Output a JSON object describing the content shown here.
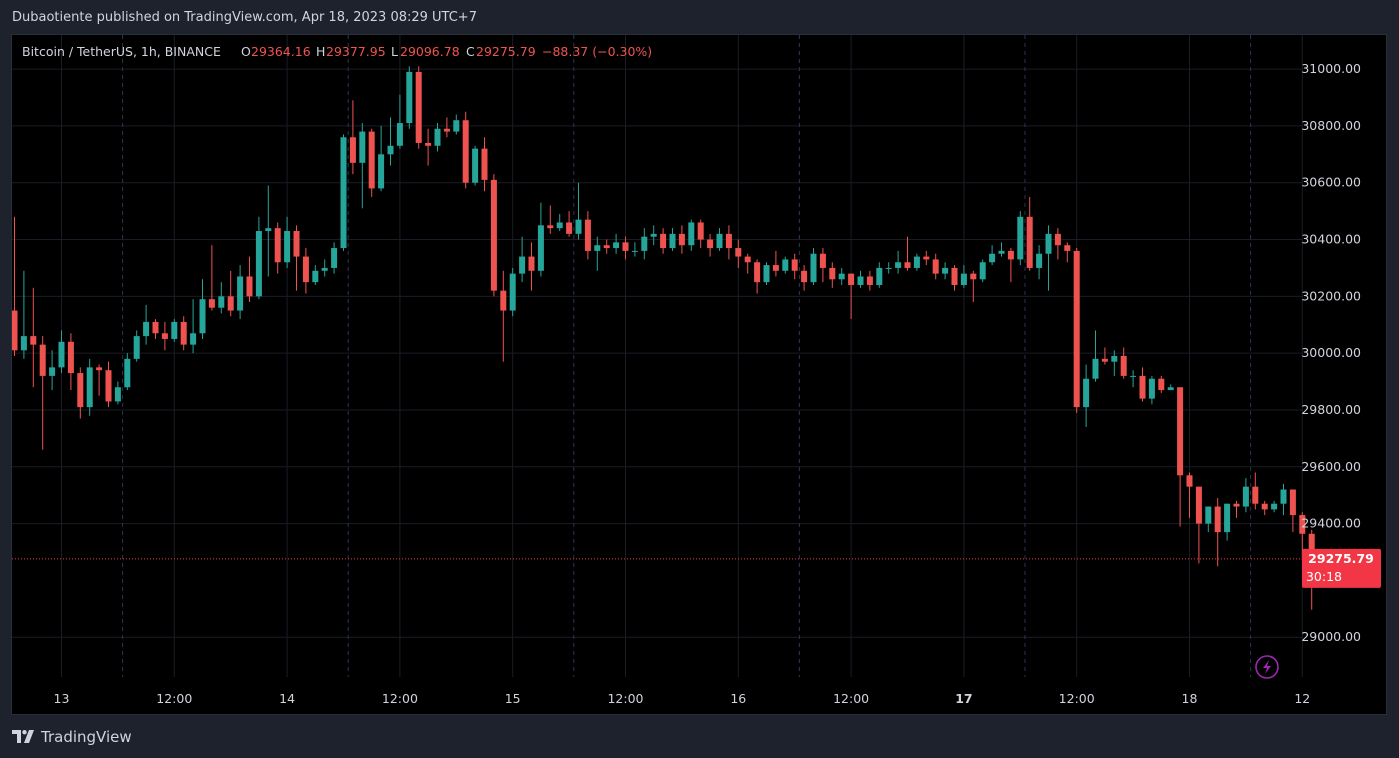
{
  "header": {
    "published_text": "Dubaotiente published on TradingView.com, Apr 18, 2023 08:29 UTC+7"
  },
  "legend": {
    "symbol": "Bitcoin / TetherUS, 1h, BINANCE",
    "open_label": "O",
    "open_value": "29364.16",
    "high_label": "H",
    "high_value": "29377.95",
    "low_label": "L",
    "low_value": "29096.78",
    "close_label": "C",
    "close_value": "29275.79",
    "change": "−88.37 (−0.30%)"
  },
  "price_badge": {
    "price": "29275.79",
    "countdown": "30:18"
  },
  "footer": {
    "brand": "TradingView"
  },
  "colors": {
    "up": "#26a69a",
    "down": "#ef5350",
    "chart_bg": "#000000",
    "page_bg": "#1e222d",
    "grid": "#1a1d26",
    "text": "#d1d4dc",
    "session_line": "#2a3550",
    "badge_bg": "#f23645",
    "price_line": "#f23645",
    "bolt": "#9c27b0"
  },
  "chart_data": {
    "type": "candlestick",
    "symbol": "Bitcoin / TetherUS",
    "interval": "1h",
    "exchange": "BINANCE",
    "ylim": [
      28860,
      31120
    ],
    "y_ticks": [
      31000,
      30800,
      30600,
      30400,
      30200,
      30000,
      29800,
      29600,
      29400,
      29000
    ],
    "y_tick_labels": [
      "31000.00",
      "30800.00",
      "30600.00",
      "30400.00",
      "30200.00",
      "30000.00",
      "29800.00",
      "29600.00",
      "29400.00",
      "29000.00"
    ],
    "x_ticks": [
      {
        "label": "13",
        "bar": 5,
        "bold": false
      },
      {
        "label": "12:00",
        "bar": 17,
        "bold": false
      },
      {
        "label": "14",
        "bar": 29,
        "bold": false
      },
      {
        "label": "12:00",
        "bar": 41,
        "bold": false
      },
      {
        "label": "15",
        "bar": 53,
        "bold": false
      },
      {
        "label": "12:00",
        "bar": 65,
        "bold": false
      },
      {
        "label": "16",
        "bar": 77,
        "bold": false
      },
      {
        "label": "12:00",
        "bar": 89,
        "bold": false
      },
      {
        "label": "17",
        "bar": 101,
        "bold": true
      },
      {
        "label": "12:00",
        "bar": 113,
        "bold": false
      },
      {
        "label": "18",
        "bar": 125,
        "bold": false
      },
      {
        "label": "12",
        "bar": 137,
        "bold": false
      }
    ],
    "session_breaks": [
      11.5,
      35.5,
      59.5,
      83.5,
      107.5,
      131.5
    ],
    "last_price": 29275.79,
    "candles": [
      [
        30150,
        30010,
        30480,
        29990
      ],
      [
        30010,
        30060,
        30290,
        29980
      ],
      [
        30060,
        30030,
        30230,
        29880
      ],
      [
        30030,
        29920,
        30060,
        29660
      ],
      [
        29920,
        29950,
        30010,
        29870
      ],
      [
        29950,
        30040,
        30080,
        29930
      ],
      [
        30040,
        29930,
        30070,
        29870
      ],
      [
        29930,
        29810,
        29950,
        29770
      ],
      [
        29810,
        29950,
        29980,
        29780
      ],
      [
        29950,
        29940,
        29960,
        29850
      ],
      [
        29940,
        29830,
        29970,
        29810
      ],
      [
        29830,
        29880,
        29900,
        29820
      ],
      [
        29880,
        29980,
        30000,
        29870
      ],
      [
        29980,
        30060,
        30080,
        29970
      ],
      [
        30060,
        30110,
        30170,
        30030
      ],
      [
        30110,
        30070,
        30120,
        30050
      ],
      [
        30070,
        30050,
        30110,
        30010
      ],
      [
        30050,
        30110,
        30120,
        30040
      ],
      [
        30110,
        30030,
        30130,
        30010
      ],
      [
        30030,
        30070,
        30190,
        30000
      ],
      [
        30070,
        30190,
        30260,
        30050
      ],
      [
        30190,
        30160,
        30380,
        30150
      ],
      [
        30160,
        30200,
        30250,
        30140
      ],
      [
        30200,
        30150,
        30290,
        30130
      ],
      [
        30150,
        30270,
        30310,
        30120
      ],
      [
        30270,
        30200,
        30340,
        30180
      ],
      [
        30200,
        30430,
        30480,
        30190
      ],
      [
        30430,
        30440,
        30590,
        30270
      ],
      [
        30440,
        30320,
        30460,
        30280
      ],
      [
        30320,
        30430,
        30480,
        30300
      ],
      [
        30430,
        30340,
        30450,
        30220
      ],
      [
        30340,
        30250,
        30370,
        30210
      ],
      [
        30250,
        30290,
        30310,
        30240
      ],
      [
        30290,
        30300,
        30330,
        30270
      ],
      [
        30300,
        30370,
        30390,
        30280
      ],
      [
        30370,
        30760,
        30770,
        30360
      ],
      [
        30760,
        30670,
        30890,
        30630
      ],
      [
        30670,
        30780,
        30810,
        30510
      ],
      [
        30780,
        30580,
        30790,
        30550
      ],
      [
        30580,
        30700,
        30800,
        30570
      ],
      [
        30700,
        30730,
        30830,
        30660
      ],
      [
        30730,
        30810,
        30910,
        30720
      ],
      [
        30810,
        30990,
        31010,
        30790
      ],
      [
        30990,
        30740,
        31010,
        30720
      ],
      [
        30740,
        30730,
        30790,
        30660
      ],
      [
        30730,
        30790,
        30810,
        30710
      ],
      [
        30790,
        30780,
        30830,
        30760
      ],
      [
        30780,
        30820,
        30840,
        30770
      ],
      [
        30820,
        30600,
        30850,
        30580
      ],
      [
        30600,
        30720,
        30730,
        30590
      ],
      [
        30720,
        30610,
        30760,
        30570
      ],
      [
        30610,
        30220,
        30630,
        30200
      ],
      [
        30220,
        30150,
        30290,
        29970
      ],
      [
        30150,
        30280,
        30300,
        30130
      ],
      [
        30280,
        30340,
        30410,
        30250
      ],
      [
        30340,
        30290,
        30390,
        30220
      ],
      [
        30290,
        30450,
        30530,
        30270
      ],
      [
        30450,
        30440,
        30520,
        30420
      ],
      [
        30440,
        30460,
        30490,
        30430
      ],
      [
        30460,
        30420,
        30500,
        30410
      ],
      [
        30420,
        30470,
        30600,
        30400
      ],
      [
        30470,
        30360,
        30500,
        30330
      ],
      [
        30360,
        30380,
        30410,
        30290
      ],
      [
        30380,
        30370,
        30400,
        30350
      ],
      [
        30370,
        30390,
        30420,
        30350
      ],
      [
        30390,
        30360,
        30410,
        30330
      ],
      [
        30360,
        30360,
        30390,
        30340
      ],
      [
        30360,
        30410,
        30440,
        30330
      ],
      [
        30410,
        30420,
        30450,
        30380
      ],
      [
        30420,
        30370,
        30440,
        30350
      ],
      [
        30370,
        30420,
        30440,
        30360
      ],
      [
        30420,
        30380,
        30450,
        30350
      ],
      [
        30380,
        30460,
        30470,
        30360
      ],
      [
        30460,
        30400,
        30470,
        30370
      ],
      [
        30400,
        30370,
        30420,
        30340
      ],
      [
        30370,
        30420,
        30440,
        30360
      ],
      [
        30420,
        30370,
        30450,
        30330
      ],
      [
        30370,
        30340,
        30400,
        30300
      ],
      [
        30340,
        30320,
        30350,
        30280
      ],
      [
        30320,
        30250,
        30330,
        30210
      ],
      [
        30250,
        30310,
        30320,
        30240
      ],
      [
        30310,
        30290,
        30360,
        30270
      ],
      [
        30290,
        30330,
        30340,
        30280
      ],
      [
        30330,
        30290,
        30350,
        30260
      ],
      [
        30290,
        30250,
        30310,
        30220
      ],
      [
        30250,
        30350,
        30370,
        30240
      ],
      [
        30350,
        30300,
        30370,
        30250
      ],
      [
        30300,
        30260,
        30320,
        30230
      ],
      [
        30260,
        30280,
        30300,
        30240
      ],
      [
        30280,
        30240,
        30280,
        30120
      ],
      [
        30240,
        30270,
        30290,
        30230
      ],
      [
        30270,
        30240,
        30290,
        30220
      ],
      [
        30240,
        30300,
        30320,
        30230
      ],
      [
        30300,
        30300,
        30320,
        30280
      ],
      [
        30300,
        30320,
        30360,
        30280
      ],
      [
        30320,
        30300,
        30410,
        30290
      ],
      [
        30300,
        30340,
        30350,
        30290
      ],
      [
        30340,
        30330,
        30360,
        30310
      ],
      [
        30330,
        30280,
        30350,
        30260
      ],
      [
        30280,
        30300,
        30320,
        30260
      ],
      [
        30300,
        30240,
        30310,
        30220
      ],
      [
        30240,
        30280,
        30310,
        30230
      ],
      [
        30280,
        30260,
        30290,
        30180
      ],
      [
        30260,
        30320,
        30330,
        30250
      ],
      [
        30320,
        30350,
        30380,
        30310
      ],
      [
        30350,
        30360,
        30390,
        30340
      ],
      [
        30360,
        30330,
        30370,
        30250
      ],
      [
        30330,
        30480,
        30500,
        30310
      ],
      [
        30480,
        30300,
        30550,
        30290
      ],
      [
        30300,
        30350,
        30380,
        30260
      ],
      [
        30350,
        30420,
        30450,
        30220
      ],
      [
        30420,
        30380,
        30440,
        30330
      ],
      [
        30380,
        30360,
        30390,
        30320
      ],
      [
        30360,
        29810,
        30370,
        29790
      ],
      [
        29810,
        29910,
        29960,
        29740
      ],
      [
        29910,
        29980,
        30080,
        29900
      ],
      [
        29980,
        29970,
        30020,
        29960
      ],
      [
        29970,
        29990,
        30010,
        29920
      ],
      [
        29990,
        29920,
        30020,
        29910
      ],
      [
        29920,
        29920,
        29940,
        29880
      ],
      [
        29920,
        29840,
        29950,
        29830
      ],
      [
        29840,
        29910,
        29920,
        29820
      ],
      [
        29910,
        29870,
        29920,
        29860
      ],
      [
        29870,
        29880,
        29890,
        29870
      ],
      [
        29880,
        29570,
        29880,
        29390
      ],
      [
        29570,
        29530,
        29580,
        29420
      ],
      [
        29530,
        29400,
        29530,
        29260
      ],
      [
        29400,
        29460,
        29460,
        29370
      ],
      [
        29460,
        29370,
        29490,
        29250
      ],
      [
        29370,
        29470,
        29470,
        29340
      ],
      [
        29470,
        29460,
        29480,
        29420
      ],
      [
        29460,
        29530,
        29560,
        29440
      ],
      [
        29530,
        29470,
        29580,
        29450
      ],
      [
        29470,
        29450,
        29480,
        29430
      ],
      [
        29450,
        29470,
        29480,
        29440
      ],
      [
        29470,
        29520,
        29540,
        29430
      ],
      [
        29520,
        29430,
        29520,
        29370
      ],
      [
        29430,
        29364.16,
        29440,
        29270
      ],
      [
        29364.16,
        29275.79,
        29377.95,
        29096.78
      ]
    ]
  }
}
